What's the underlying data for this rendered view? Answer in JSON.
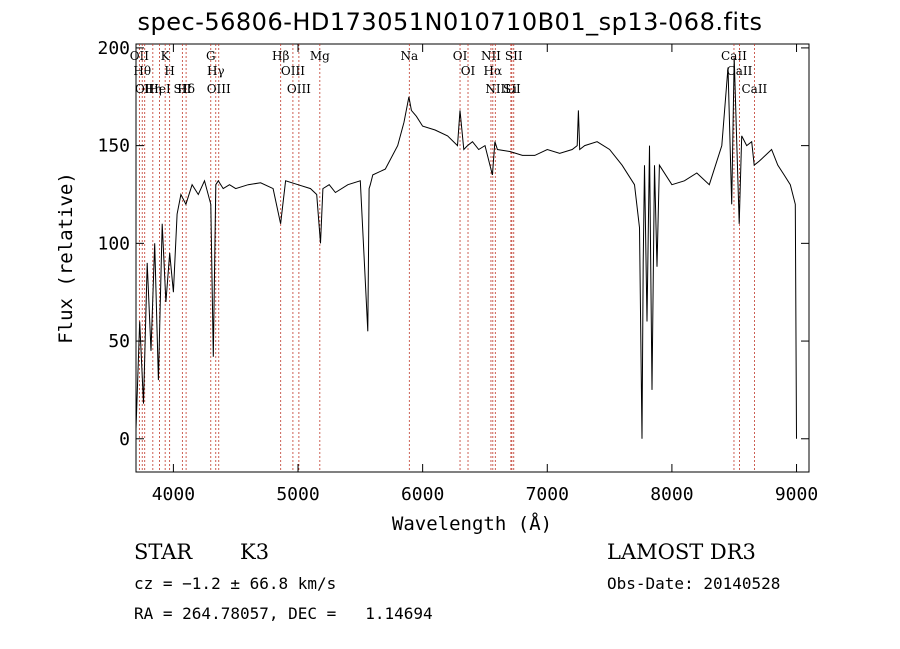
{
  "chart_data": {
    "type": "line",
    "title": "spec-56806-HD173051N010710B01_sp13-068.fits",
    "xlabel": "Wavelength (Å)",
    "ylabel": "Flux (relative)",
    "xlim": [
      3700,
      9100
    ],
    "ylim": [
      -17,
      202
    ],
    "xticks": [
      4000,
      5000,
      6000,
      7000,
      8000,
      9000
    ],
    "yticks": [
      0,
      50,
      100,
      150,
      200
    ],
    "grid": false,
    "series": [
      {
        "x": [
          3700,
          3730,
          3760,
          3790,
          3820,
          3850,
          3880,
          3910,
          3940,
          3970,
          4000,
          4030,
          4060,
          4100,
          4150,
          4200,
          4250,
          4300,
          4320,
          4340,
          4360,
          4400,
          4450,
          4500,
          4600,
          4700,
          4800,
          4860,
          4900,
          5000,
          5100,
          5150,
          5180,
          5200,
          5250,
          5300,
          5400,
          5500,
          5560,
          5570,
          5580,
          5600,
          5700,
          5800,
          5850,
          5890,
          5910,
          5950,
          6000,
          6100,
          6200,
          6280,
          6300,
          6330,
          6360,
          6400,
          6450,
          6500,
          6560,
          6580,
          6600,
          6700,
          6800,
          6900,
          7000,
          7100,
          7200,
          7240,
          7250,
          7260,
          7300,
          7400,
          7500,
          7600,
          7700,
          7740,
          7760,
          7770,
          7780,
          7800,
          7820,
          7840,
          7860,
          7880,
          7900,
          8000,
          8100,
          8200,
          8300,
          8400,
          8450,
          8480,
          8500,
          8540,
          8560,
          8600,
          8640,
          8660,
          8700,
          8750,
          8800,
          8850,
          8900,
          8950,
          8990,
          9000
        ],
        "y": [
          5,
          60,
          18,
          90,
          45,
          100,
          30,
          110,
          70,
          95,
          75,
          115,
          125,
          120,
          130,
          125,
          132,
          120,
          42,
          130,
          132,
          128,
          130,
          128,
          130,
          131,
          128,
          110,
          132,
          130,
          128,
          125,
          100,
          128,
          130,
          126,
          130,
          132,
          55,
          128,
          130,
          135,
          138,
          150,
          162,
          175,
          168,
          165,
          160,
          158,
          155,
          150,
          168,
          148,
          150,
          152,
          148,
          150,
          135,
          152,
          148,
          147,
          145,
          145,
          148,
          146,
          148,
          150,
          168,
          148,
          150,
          152,
          148,
          140,
          130,
          108,
          0,
          90,
          140,
          60,
          150,
          25,
          140,
          88,
          140,
          130,
          132,
          136,
          130,
          150,
          190,
          120,
          195,
          110,
          155,
          150,
          152,
          140,
          142,
          145,
          148,
          140,
          135,
          130,
          120,
          0
        ]
      }
    ],
    "lines": [
      {
        "wl": 3727,
        "label": "OII"
      },
      {
        "wl": 3750,
        "label": "Hθ"
      },
      {
        "wl": 3770,
        "label": "OII"
      },
      {
        "wl": 3835,
        "label": "Hη"
      },
      {
        "wl": 3889,
        "label": "HeI"
      },
      {
        "wl": 3934,
        "label": "K"
      },
      {
        "wl": 3970,
        "label": "H"
      },
      {
        "wl": 4072,
        "label": "SII"
      },
      {
        "wl": 4102,
        "label": "Hδ"
      },
      {
        "wl": 4300,
        "label": "G"
      },
      {
        "wl": 4340,
        "label": "Hγ"
      },
      {
        "wl": 4364,
        "label": "OIII"
      },
      {
        "wl": 4861,
        "label": "Hβ"
      },
      {
        "wl": 4959,
        "label": "OIII"
      },
      {
        "wl": 5007,
        "label": "OIII"
      },
      {
        "wl": 5175,
        "label": "Mg"
      },
      {
        "wl": 5893,
        "label": "Na"
      },
      {
        "wl": 6300,
        "label": "OI"
      },
      {
        "wl": 6364,
        "label": "OI"
      },
      {
        "wl": 6548,
        "label": "NII"
      },
      {
        "wl": 6563,
        "label": "Hα"
      },
      {
        "wl": 6583,
        "label": "NII"
      },
      {
        "wl": 6708,
        "label": "Li"
      },
      {
        "wl": 6716,
        "label": "SII"
      },
      {
        "wl": 6731,
        "label": "SII"
      },
      {
        "wl": 8498,
        "label": "CaII"
      },
      {
        "wl": 8542,
        "label": "CaII"
      },
      {
        "wl": 8662,
        "label": "CaII"
      }
    ]
  },
  "info": {
    "class": "STAR",
    "subclass": "K3",
    "survey": "LAMOST DR3",
    "cz": "cz = −1.2 ± 66.8 km/s",
    "obs_date": "Obs-Date: 20140528",
    "radec": "RA = 264.78057, DEC =   1.14694"
  }
}
